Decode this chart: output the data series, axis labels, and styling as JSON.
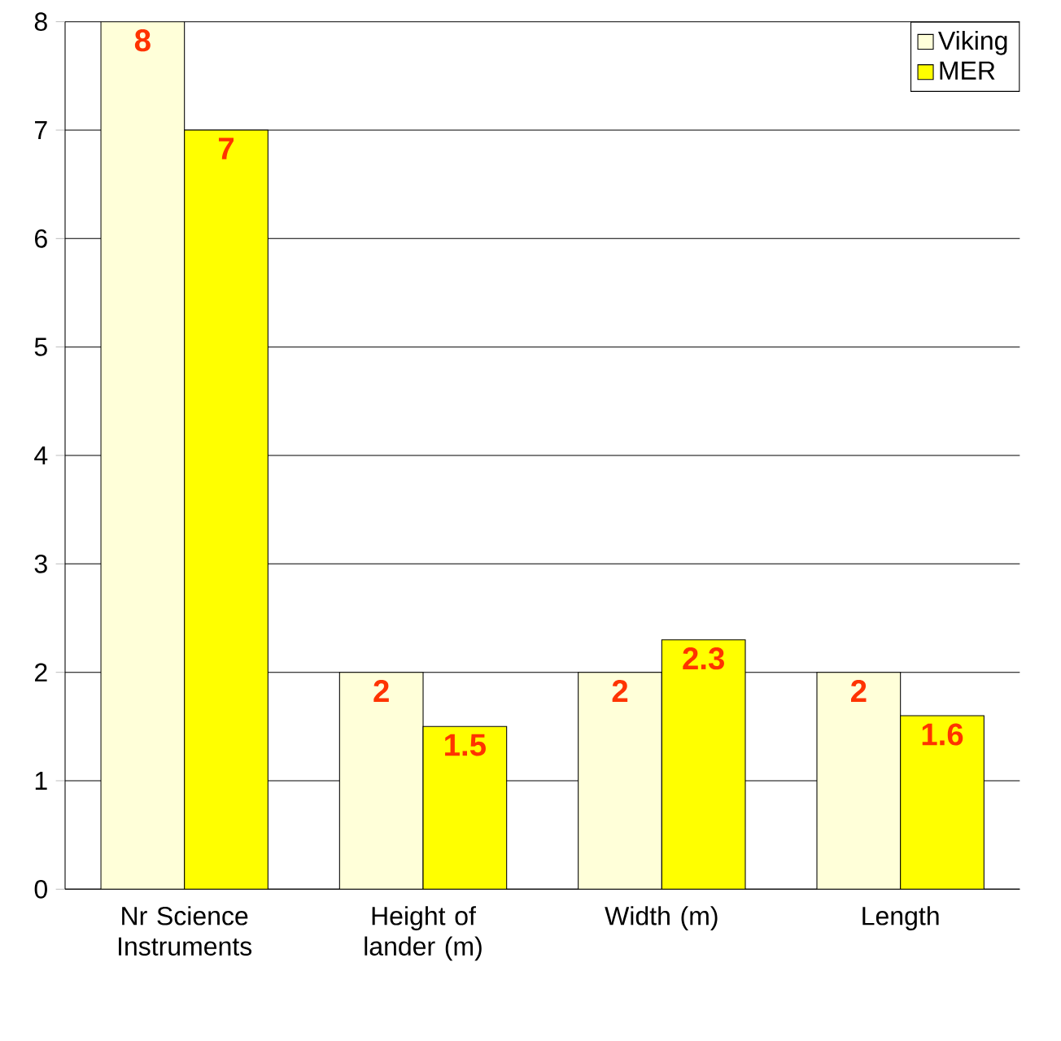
{
  "chart_data": {
    "type": "bar",
    "categories": [
      "Nr Science Instruments",
      "Height of lander (m)",
      "Width (m)",
      "Length"
    ],
    "series": [
      {
        "name": "Viking",
        "color": "#ffffd9",
        "values": [
          8,
          2,
          2,
          2
        ]
      },
      {
        "name": "MER",
        "color": "#ffff00",
        "values": [
          7,
          1.5,
          2.3,
          1.6
        ]
      }
    ],
    "ylim": [
      0,
      8
    ],
    "yticks": [
      0,
      1,
      2,
      3,
      4,
      5,
      6,
      7,
      8
    ],
    "grid": "y",
    "legend": "top right",
    "data_labels": true
  }
}
